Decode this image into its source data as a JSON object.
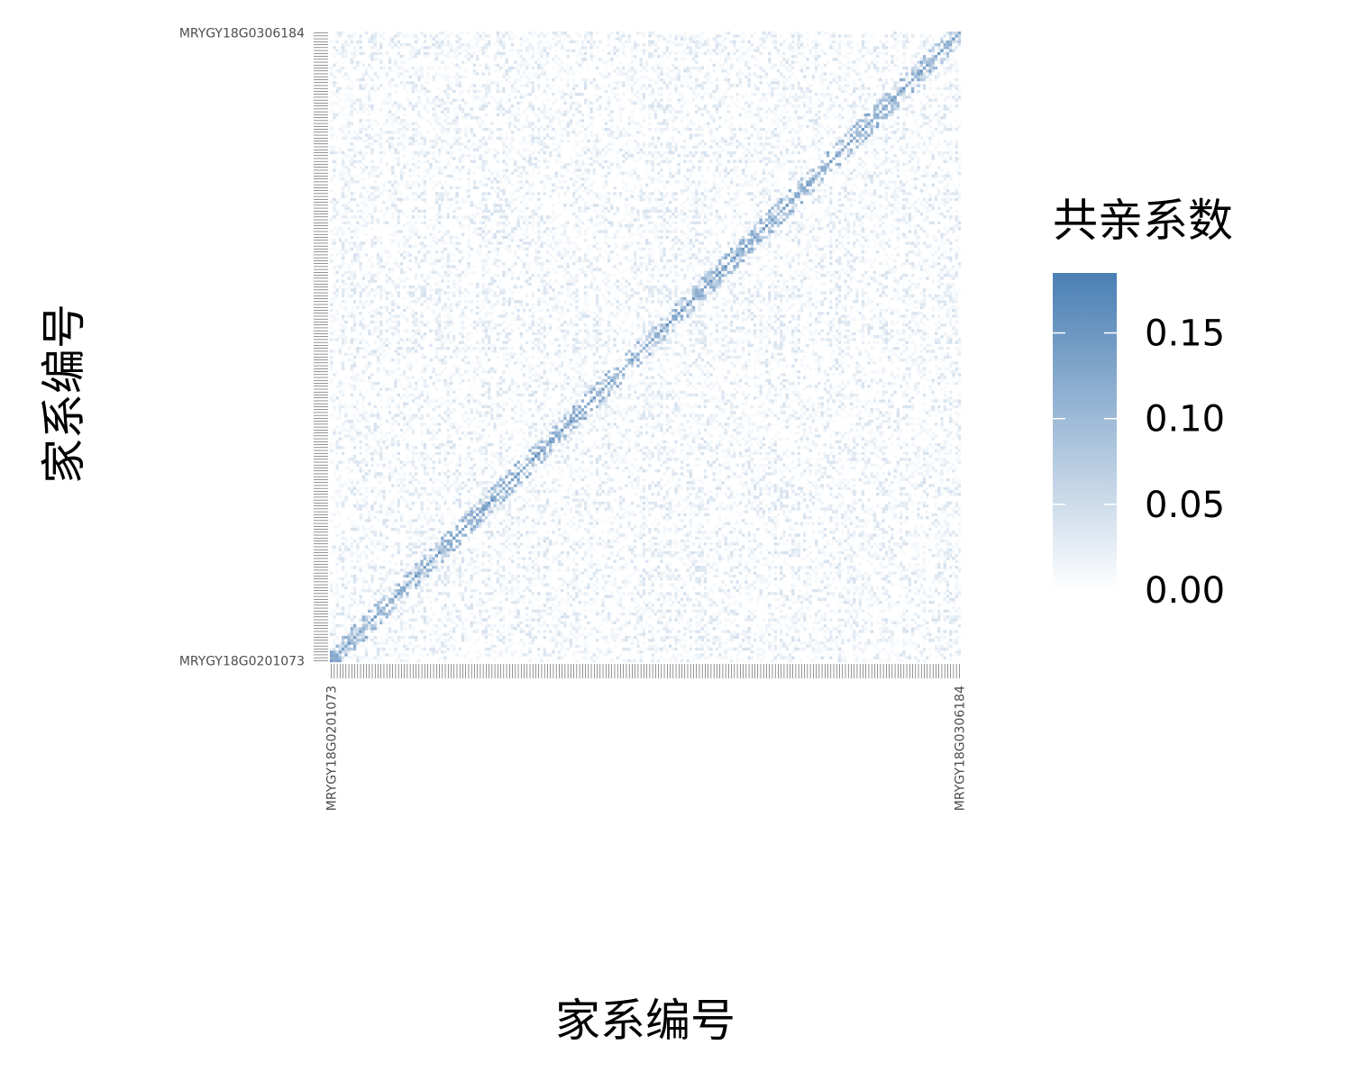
{
  "chart_data": {
    "type": "heatmap",
    "xlabel": "家系编号",
    "ylabel": "家系编号",
    "legend": {
      "title": "共亲系数",
      "ticks": [
        0.0,
        0.05,
        0.1,
        0.15
      ],
      "tick_labels": [
        "0.00",
        "0.05",
        "0.10",
        "0.15"
      ],
      "range": [
        0,
        0.185
      ],
      "low_color": "#ffffff",
      "high_color": "#4a7fb4",
      "position": "right"
    },
    "n_families": 216,
    "y_tick_labels_visible": [
      "MRYGY18G0306184",
      "MRYGY18G0201073"
    ],
    "x_tick_labels_visible": [
      "MRYGY18G0201073",
      "MRYGY18G0306184"
    ],
    "strong_cells": [
      {
        "row": "MRYGY18G0306184",
        "col": "MRYGY18G0306184",
        "value": 0.16
      },
      {
        "row": "MRYGY18G0201073",
        "col": "MRYGY18G0201073",
        "value": 0.15
      }
    ],
    "grid": false,
    "value_summary": {
      "min": 0.0,
      "max": 0.18,
      "typical_off_diagonal": "0.00–0.04"
    }
  }
}
